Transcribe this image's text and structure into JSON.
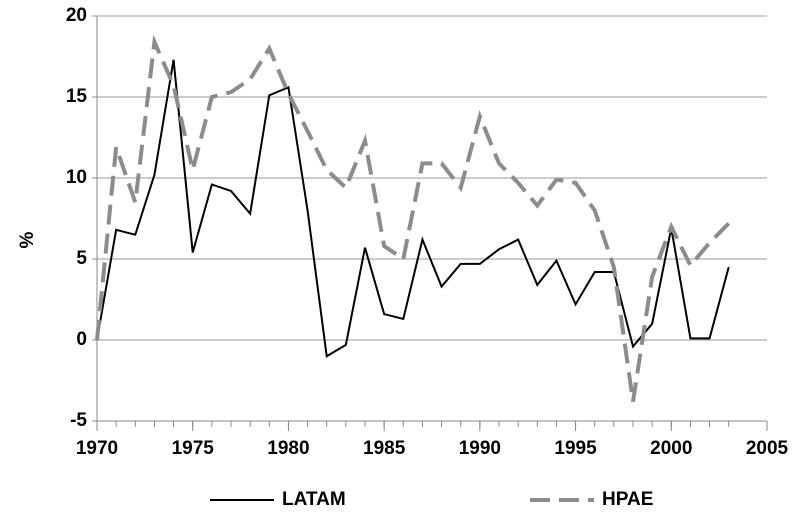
{
  "chart_data": {
    "type": "line",
    "ylabel": "%",
    "x": [
      1970,
      1971,
      1972,
      1973,
      1974,
      1975,
      1976,
      1977,
      1978,
      1979,
      1980,
      1981,
      1982,
      1983,
      1984,
      1985,
      1986,
      1987,
      1988,
      1989,
      1990,
      1991,
      1992,
      1993,
      1994,
      1995,
      1996,
      1997,
      1998,
      1999,
      2000,
      2001,
      2002,
      2003
    ],
    "series": [
      {
        "name": "LATAM",
        "color": "#000000",
        "dashed": false,
        "values": [
          0,
          6.8,
          6.5,
          10.2,
          17.3,
          5.4,
          9.6,
          9.2,
          7.8,
          15.1,
          15.6,
          8,
          -1,
          -0.3,
          5.7,
          1.6,
          1.3,
          6.2,
          3.3,
          4.7,
          4.7,
          5.6,
          6.2,
          3.4,
          4.9,
          2.2,
          4.2,
          4.2,
          -0.4,
          1.0,
          6.9,
          0.1,
          0.1,
          4.5
        ]
      },
      {
        "name": "HPAE",
        "color": "#8c8c8c",
        "dashed": true,
        "values": [
          0,
          11.9,
          8.5,
          18.4,
          15.7,
          10.5,
          15,
          15.3,
          16.1,
          18,
          15.2,
          12.9,
          10.5,
          9.4,
          12.3,
          5.8,
          5,
          10.9,
          10.9,
          9.4,
          13.8,
          10.9,
          9.7,
          8.3,
          9.9,
          9.7,
          8,
          4.5,
          -3.8,
          3.9,
          7,
          4.6,
          6,
          7.2
        ]
      }
    ],
    "xlim": [
      1970,
      2005
    ],
    "xticks": [
      1970,
      1975,
      1980,
      1985,
      1990,
      1995,
      2000,
      2005
    ],
    "ylim": [
      -5,
      20
    ],
    "yticks": [
      -5,
      0,
      5,
      10,
      15,
      20
    ],
    "grid": true,
    "legend": "bottom"
  }
}
